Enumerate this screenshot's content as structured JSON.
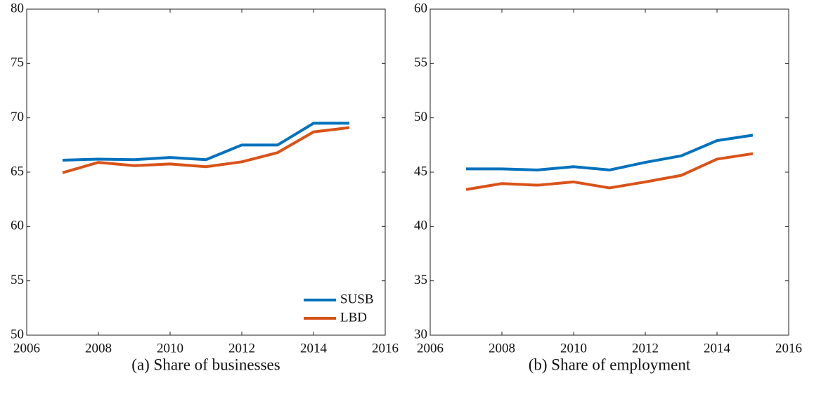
{
  "chart_data": [
    {
      "type": "line",
      "title": "(a) Share of businesses",
      "x": [
        2007,
        2008,
        2009,
        2010,
        2011,
        2012,
        2013,
        2014,
        2015
      ],
      "series": [
        {
          "name": "SUSB",
          "color": "#0072BD",
          "values": [
            66.1,
            66.2,
            66.15,
            66.35,
            66.15,
            67.5,
            67.5,
            69.5,
            69.5
          ]
        },
        {
          "name": "LBD",
          "color": "#D95319",
          "values": [
            64.95,
            65.9,
            65.6,
            65.75,
            65.5,
            65.95,
            66.8,
            68.7,
            69.1
          ]
        }
      ],
      "xlim": [
        2006,
        2016
      ],
      "xticks": [
        2006,
        2008,
        2010,
        2012,
        2014,
        2016
      ],
      "ylim": [
        50,
        80
      ],
      "yticks": [
        50,
        55,
        60,
        65,
        70,
        75,
        80
      ],
      "legend": "lower right"
    },
    {
      "type": "line",
      "title": "(b) Share of employment",
      "x": [
        2007,
        2008,
        2009,
        2010,
        2011,
        2012,
        2013,
        2014,
        2015
      ],
      "series": [
        {
          "color": "#0072BD",
          "values": [
            45.3,
            45.3,
            45.2,
            45.5,
            45.2,
            45.9,
            46.5,
            47.9,
            48.4
          ]
        },
        {
          "color": "#D95319",
          "values": [
            43.4,
            43.95,
            43.8,
            44.1,
            43.55,
            44.1,
            44.7,
            46.2,
            46.7
          ]
        }
      ],
      "xlim": [
        2006,
        2016
      ],
      "xticks": [
        2006,
        2008,
        2010,
        2012,
        2014,
        2016
      ],
      "ylim": [
        30,
        60
      ],
      "yticks": [
        30,
        35,
        40,
        45,
        50,
        55,
        60
      ]
    }
  ]
}
